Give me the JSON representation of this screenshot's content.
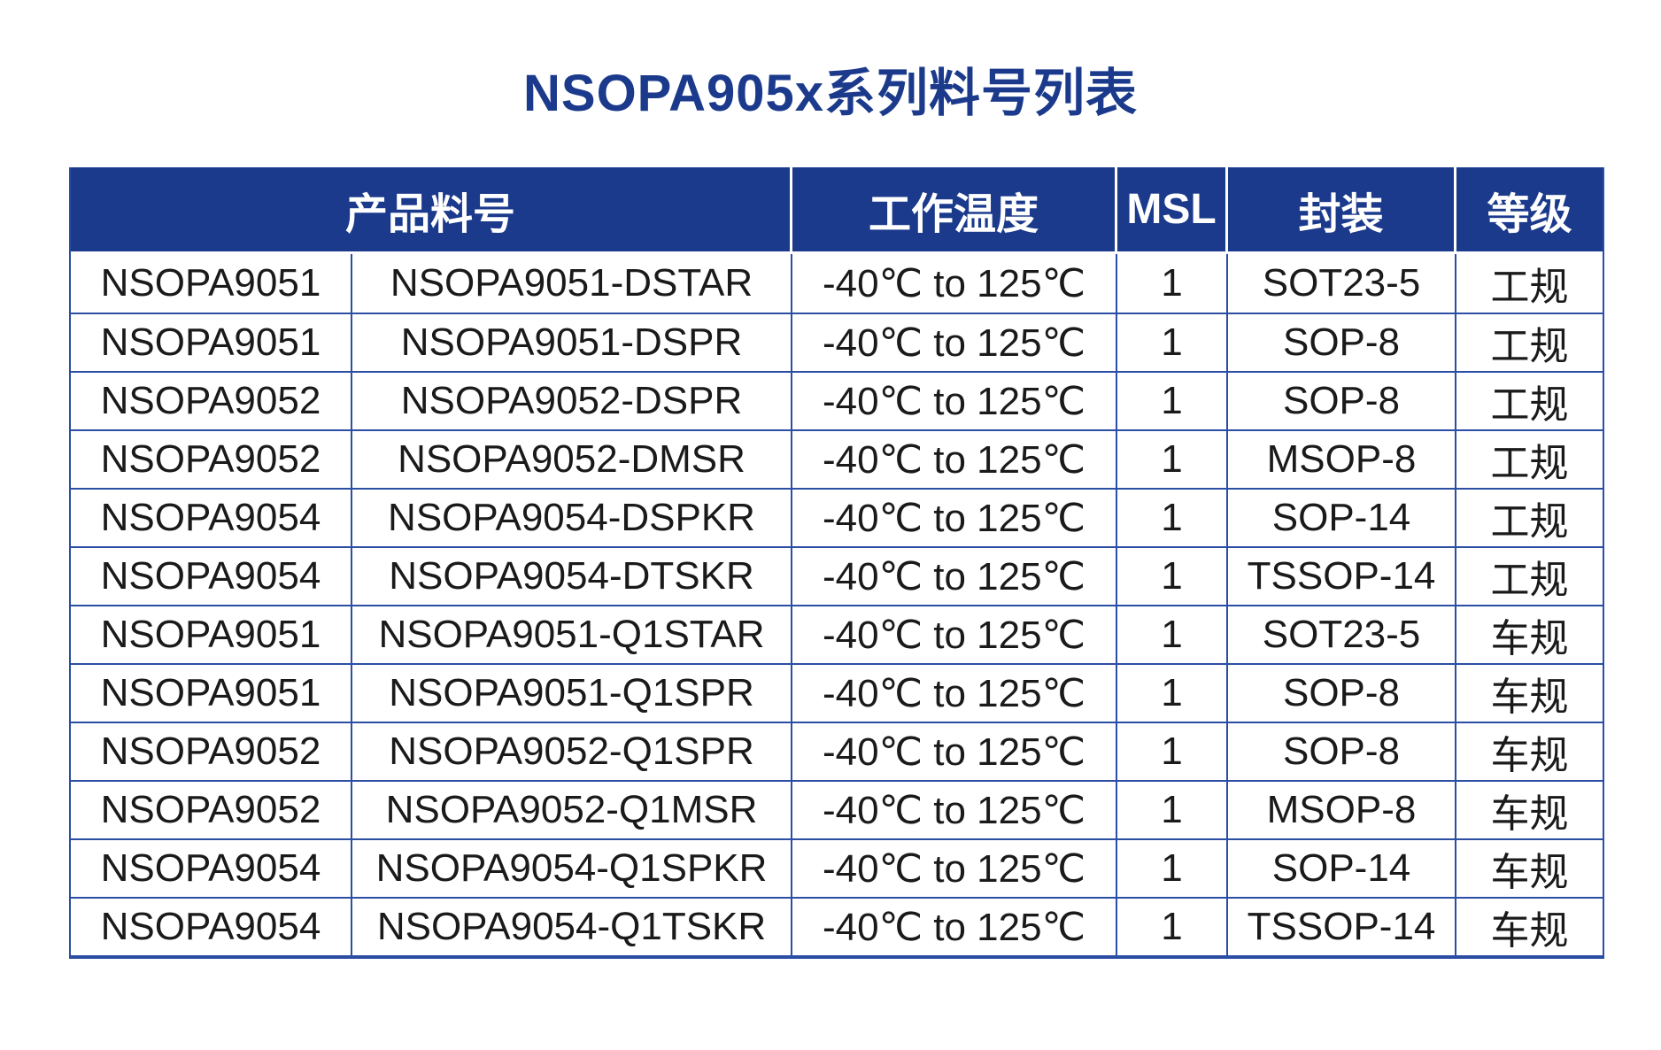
{
  "page": {
    "title": "NSOPA905x系列料号列表"
  },
  "colors": {
    "header_bg": "#1B3A8C",
    "border": "#2B4EA5",
    "title_color": "#1B3A8C",
    "text": "#1A1A1A"
  },
  "table": {
    "headers": {
      "product": "产品料号",
      "temp": "工作温度",
      "msl": "MSL",
      "package": "封装",
      "grade": "等级"
    },
    "rows": [
      {
        "series": "NSOPA9051",
        "part": "NSOPA9051-DSTAR",
        "temp": "-40℃ to 125℃",
        "msl": "1",
        "pkg": "SOT23-5",
        "grade": "工规"
      },
      {
        "series": "NSOPA9051",
        "part": "NSOPA9051-DSPR",
        "temp": "-40℃ to 125℃",
        "msl": "1",
        "pkg": "SOP-8",
        "grade": "工规"
      },
      {
        "series": "NSOPA9052",
        "part": "NSOPA9052-DSPR",
        "temp": "-40℃ to 125℃",
        "msl": "1",
        "pkg": "SOP-8",
        "grade": "工规"
      },
      {
        "series": "NSOPA9052",
        "part": "NSOPA9052-DMSR",
        "temp": "-40℃ to 125℃",
        "msl": "1",
        "pkg": "MSOP-8",
        "grade": "工规"
      },
      {
        "series": "NSOPA9054",
        "part": "NSOPA9054-DSPKR",
        "temp": "-40℃ to 125℃",
        "msl": "1",
        "pkg": "SOP-14",
        "grade": "工规"
      },
      {
        "series": "NSOPA9054",
        "part": "NSOPA9054-DTSKR",
        "temp": "-40℃ to 125℃",
        "msl": "1",
        "pkg": "TSSOP-14",
        "grade": "工规"
      },
      {
        "series": "NSOPA9051",
        "part": "NSOPA9051-Q1STAR",
        "temp": "-40℃ to 125℃",
        "msl": "1",
        "pkg": "SOT23-5",
        "grade": "车规"
      },
      {
        "series": "NSOPA9051",
        "part": "NSOPA9051-Q1SPR",
        "temp": "-40℃ to 125℃",
        "msl": "1",
        "pkg": "SOP-8",
        "grade": "车规"
      },
      {
        "series": "NSOPA9052",
        "part": "NSOPA9052-Q1SPR",
        "temp": "-40℃ to 125℃",
        "msl": "1",
        "pkg": "SOP-8",
        "grade": "车规"
      },
      {
        "series": "NSOPA9052",
        "part": "NSOPA9052-Q1MSR",
        "temp": "-40℃ to 125℃",
        "msl": "1",
        "pkg": "MSOP-8",
        "grade": "车规"
      },
      {
        "series": "NSOPA9054",
        "part": "NSOPA9054-Q1SPKR",
        "temp": "-40℃ to 125℃",
        "msl": "1",
        "pkg": "SOP-14",
        "grade": "车规"
      },
      {
        "series": "NSOPA9054",
        "part": "NSOPA9054-Q1TSKR",
        "temp": "-40℃ to 125℃",
        "msl": "1",
        "pkg": "TSSOP-14",
        "grade": "车规"
      }
    ]
  }
}
